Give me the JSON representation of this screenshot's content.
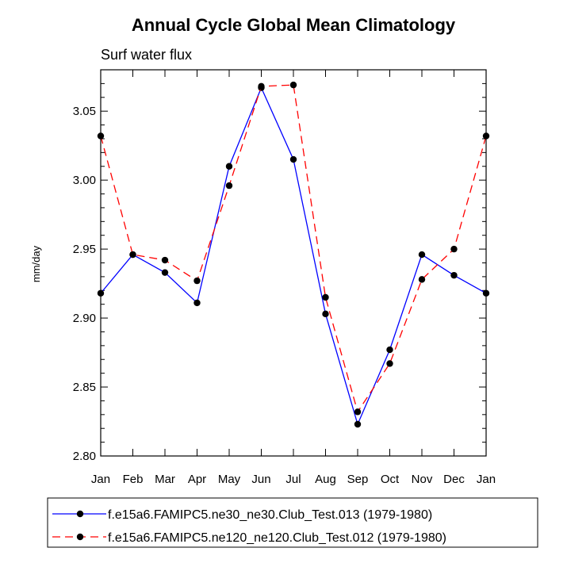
{
  "chart_data": {
    "type": "line",
    "title": "Annual Cycle Global Mean Climatology",
    "subtitle": "Surf water flux",
    "xlabel": "",
    "ylabel": "mm/day",
    "categories": [
      "Jan",
      "Feb",
      "Mar",
      "Apr",
      "May",
      "Jun",
      "Jul",
      "Aug",
      "Sep",
      "Oct",
      "Nov",
      "Dec",
      "Jan"
    ],
    "ylim": [
      2.8,
      3.08
    ],
    "yticks": [
      2.8,
      2.85,
      2.9,
      2.95,
      3.0,
      3.05
    ],
    "ytick_labels": [
      "2.80",
      "2.85",
      "2.90",
      "2.95",
      "3.00",
      "3.05"
    ],
    "series": [
      {
        "name": "f.e15a6.FAMIPC5.ne30_ne30.Club_Test.013 (1979-1980)",
        "color": "#0000ff",
        "dash": "solid",
        "values": [
          2.918,
          2.946,
          2.933,
          2.911,
          3.01,
          3.067,
          3.015,
          2.903,
          2.823,
          2.877,
          2.946,
          2.931,
          2.918
        ]
      },
      {
        "name": "f.e15a6.FAMIPC5.ne120_ne120.Club_Test.012 (1979-1980)",
        "color": "#ff0000",
        "dash": "dashed",
        "values": [
          3.032,
          2.946,
          2.942,
          2.927,
          2.996,
          3.068,
          3.069,
          2.915,
          2.832,
          2.867,
          2.928,
          2.95,
          3.032
        ]
      }
    ],
    "legend_position": "bottom",
    "marker": "filled-circle",
    "marker_color": "#000000"
  }
}
